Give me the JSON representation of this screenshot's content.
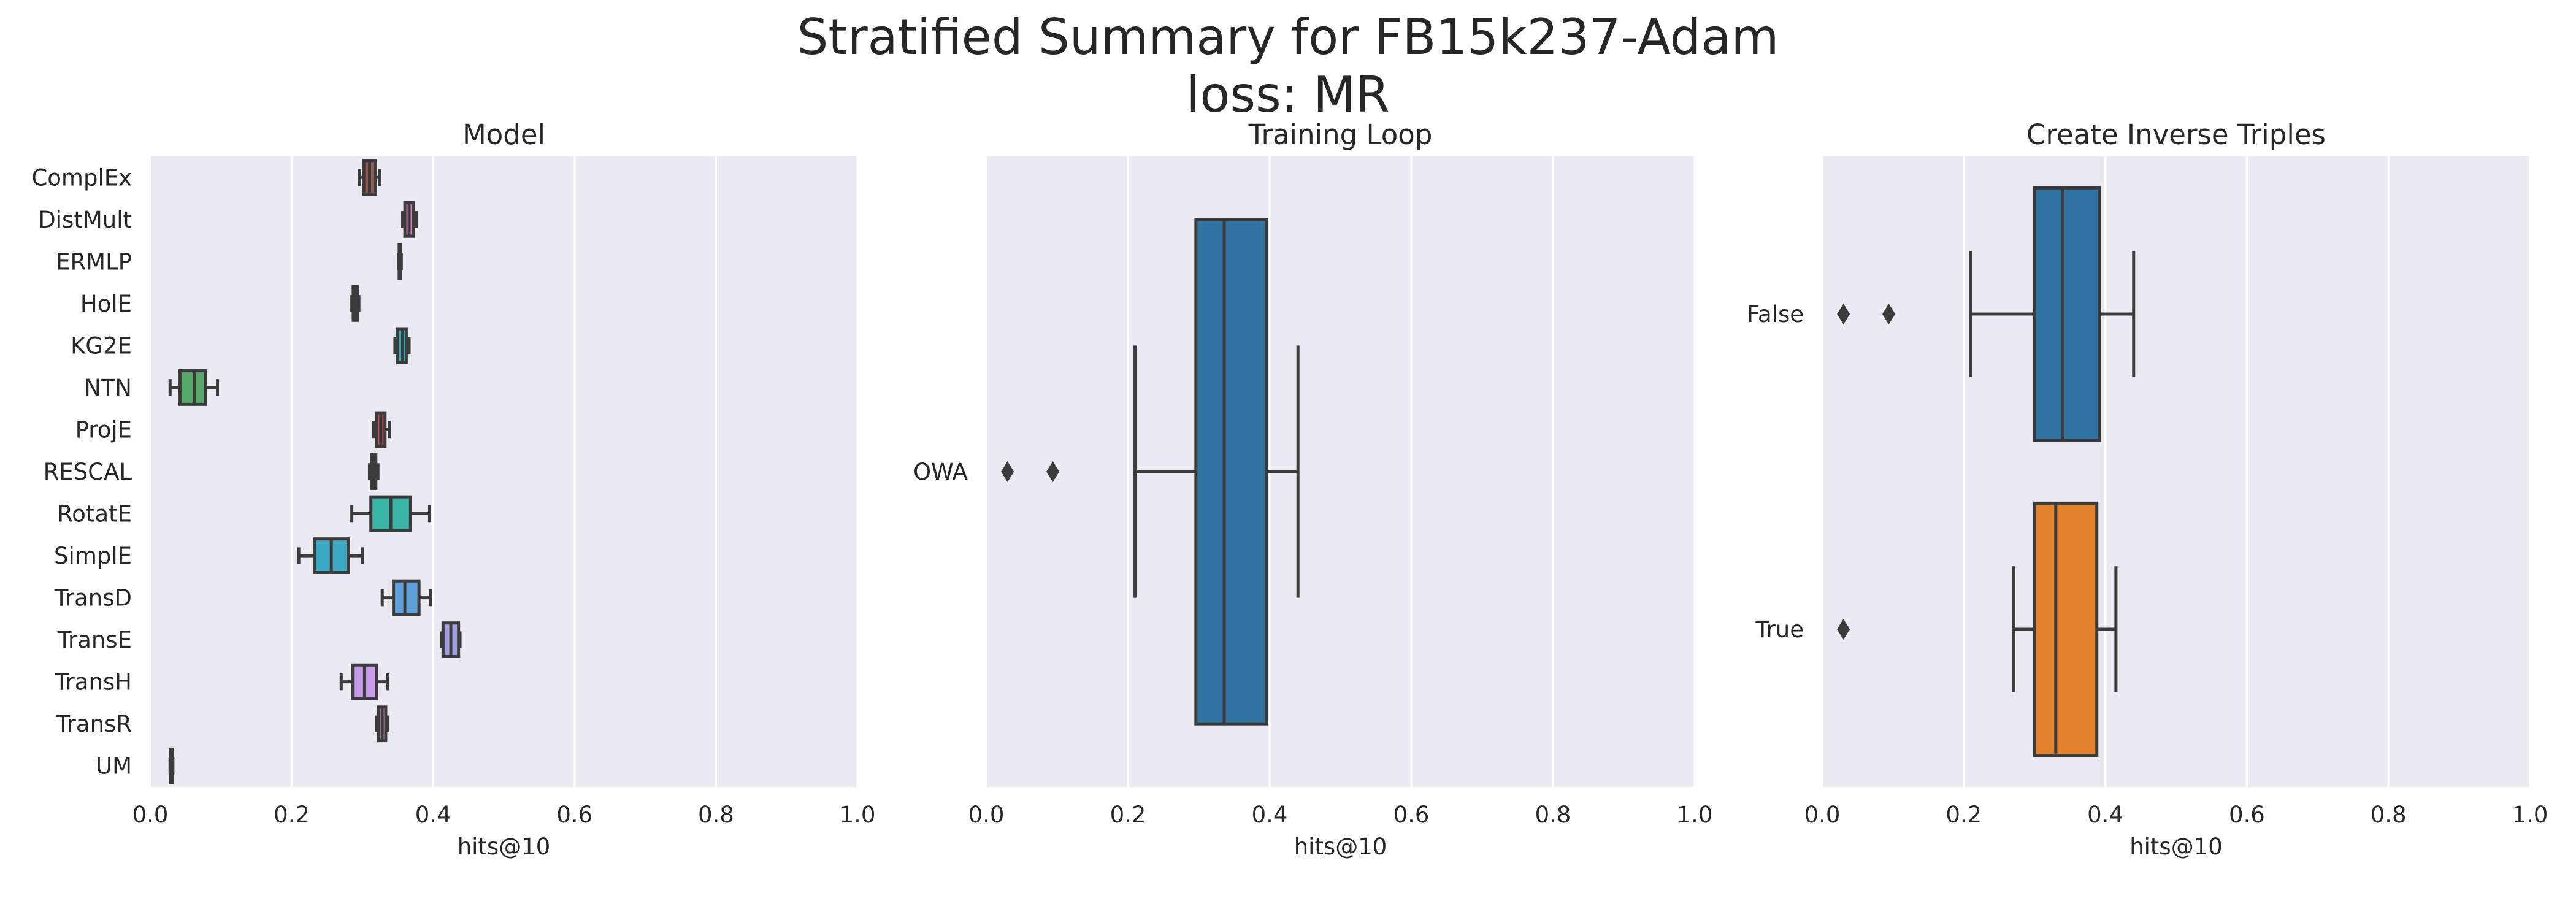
{
  "title_line1": "Stratified Summary for FB15k237-Adam",
  "title_line2": "loss: MR",
  "colors": {
    "panel_background": "#eaeaf2",
    "grid": "#ffffff",
    "line": "#3b3b3b"
  },
  "chart_data": [
    {
      "type": "box",
      "orient": "horizontal",
      "title": "Model",
      "xlabel": "hits@10",
      "xlim": [
        0,
        1
      ],
      "xticks": [
        "0.0",
        "0.2",
        "0.4",
        "0.6",
        "0.8",
        "1.0"
      ],
      "categories": [
        "ComplEx",
        "DistMult",
        "ERMLP",
        "HolE",
        "KG2E",
        "NTN",
        "ProjE",
        "RESCAL",
        "RotatE",
        "SimplE",
        "TransD",
        "TransE",
        "TransH",
        "TransR",
        "UM"
      ],
      "boxes": [
        {
          "min": 0.296,
          "q1": 0.302,
          "median": 0.31,
          "q3": 0.318,
          "max": 0.324,
          "outliers": [],
          "color": "#8c564b"
        },
        {
          "min": 0.356,
          "q1": 0.36,
          "median": 0.366,
          "q3": 0.372,
          "max": 0.376,
          "outliers": [],
          "color": "#e377c2"
        },
        {
          "min": 0.351,
          "q1": 0.352,
          "median": 0.353,
          "q3": 0.354,
          "max": 0.355,
          "outliers": [],
          "color": "#7f7f7f"
        },
        {
          "min": 0.285,
          "q1": 0.287,
          "median": 0.29,
          "q3": 0.293,
          "max": 0.295,
          "outliers": [],
          "color": "#bcbd22"
        },
        {
          "min": 0.346,
          "q1": 0.35,
          "median": 0.356,
          "q3": 0.362,
          "max": 0.366,
          "outliers": [],
          "color": "#17becf"
        },
        {
          "min": 0.028,
          "q1": 0.042,
          "median": 0.062,
          "q3": 0.078,
          "max": 0.095,
          "outliers": [],
          "color": "#55a868"
        },
        {
          "min": 0.316,
          "q1": 0.32,
          "median": 0.326,
          "q3": 0.332,
          "max": 0.338,
          "outliers": [],
          "color": "#c44e52"
        },
        {
          "min": 0.31,
          "q1": 0.313,
          "median": 0.316,
          "q3": 0.319,
          "max": 0.322,
          "outliers": [],
          "color": "#8172b2"
        },
        {
          "min": 0.285,
          "q1": 0.312,
          "median": 0.34,
          "q3": 0.368,
          "max": 0.395,
          "outliers": [],
          "color": "#3bb5a8"
        },
        {
          "min": 0.21,
          "q1": 0.232,
          "median": 0.256,
          "q3": 0.28,
          "max": 0.3,
          "outliers": [],
          "color": "#3ca9c2"
        },
        {
          "min": 0.328,
          "q1": 0.344,
          "median": 0.36,
          "q3": 0.38,
          "max": 0.396,
          "outliers": [],
          "color": "#5ea0dc"
        },
        {
          "min": 0.412,
          "q1": 0.414,
          "median": 0.425,
          "q3": 0.436,
          "max": 0.438,
          "outliers": [],
          "color": "#9f9fe0"
        },
        {
          "min": 0.27,
          "q1": 0.286,
          "median": 0.303,
          "q3": 0.32,
          "max": 0.336,
          "outliers": [],
          "color": "#c79bea"
        },
        {
          "min": 0.32,
          "q1": 0.323,
          "median": 0.328,
          "q3": 0.333,
          "max": 0.336,
          "outliers": [],
          "color": "#df7fd0"
        },
        {
          "min": 0.028,
          "q1": 0.029,
          "median": 0.03,
          "q3": 0.031,
          "max": 0.032,
          "outliers": [],
          "color": "#e88fb0"
        }
      ]
    },
    {
      "type": "box",
      "orient": "horizontal",
      "title": "Training Loop",
      "xlabel": "hits@10",
      "xlim": [
        0,
        1
      ],
      "xticks": [
        "0.0",
        "0.2",
        "0.4",
        "0.6",
        "0.8",
        "1.0"
      ],
      "categories": [
        "OWA"
      ],
      "boxes": [
        {
          "min": 0.21,
          "q1": 0.296,
          "median": 0.336,
          "q3": 0.396,
          "max": 0.44,
          "outliers": [
            0.03,
            0.094
          ],
          "color": "#3274a1"
        }
      ]
    },
    {
      "type": "box",
      "orient": "horizontal",
      "title": "Create Inverse Triples",
      "xlabel": "hits@10",
      "xlim": [
        0,
        1
      ],
      "xticks": [
        "0.0",
        "0.2",
        "0.4",
        "0.6",
        "0.8",
        "1.0"
      ],
      "categories": [
        "False",
        "True"
      ],
      "boxes": [
        {
          "min": 0.21,
          "q1": 0.3,
          "median": 0.34,
          "q3": 0.392,
          "max": 0.44,
          "outliers": [
            0.03,
            0.094
          ],
          "color": "#3274a1"
        },
        {
          "min": 0.27,
          "q1": 0.3,
          "median": 0.33,
          "q3": 0.388,
          "max": 0.415,
          "outliers": [
            0.03
          ],
          "color": "#e1812c"
        }
      ]
    }
  ]
}
